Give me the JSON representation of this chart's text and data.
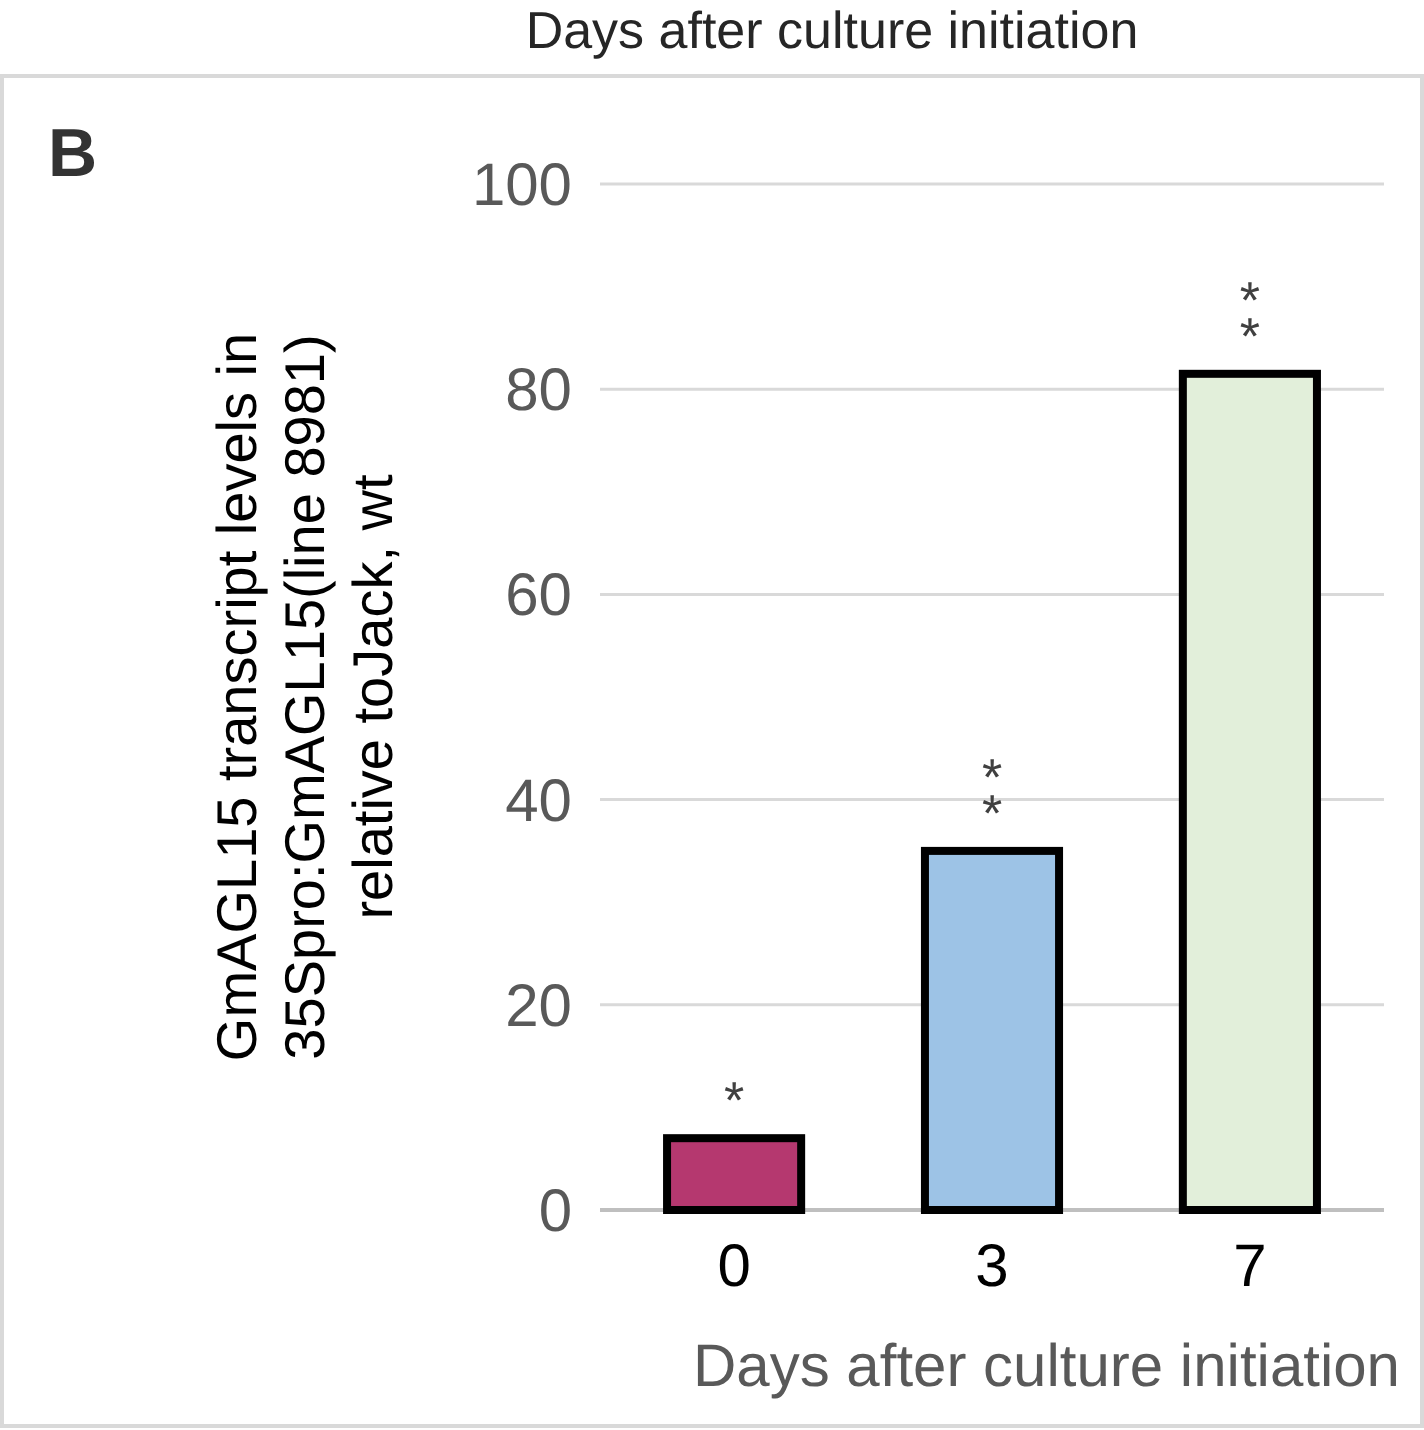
{
  "chart_data": {
    "type": "bar",
    "categories": [
      "0",
      "3",
      "7"
    ],
    "values": [
      7,
      35,
      81.5
    ],
    "colors": [
      "#b5386f",
      "#9dc3e6",
      "#e2efda"
    ],
    "xlabel": "Days after culture initiation",
    "ylabel": "GmAGL15 transcript levels in\n35Spro:GmAGL15(line 8981)\nrelative toJack, wt",
    "ylim": [
      0,
      100
    ],
    "yticks": [
      0,
      20,
      40,
      60,
      80,
      100
    ],
    "grid": "y",
    "annotations": [
      "Days after culture initiation",
      "B",
      {
        "text": "*",
        "x": "0",
        "y": 7
      },
      {
        "text": "**",
        "x": "3",
        "y": 35
      },
      {
        "text": "**",
        "x": "7",
        "y": 81.5
      }
    ]
  }
}
